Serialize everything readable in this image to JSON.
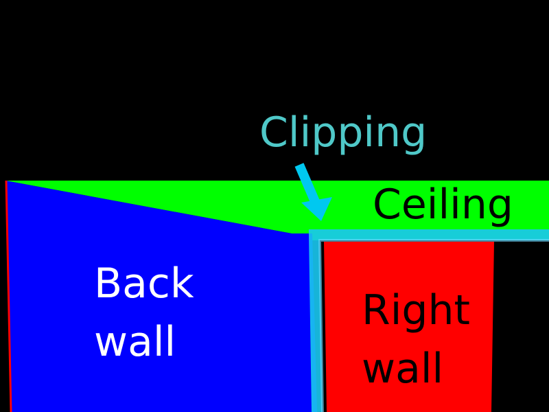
{
  "labels": {
    "clipping": "Clipping",
    "ceiling": "Ceiling",
    "back_wall_line1": "Back",
    "back_wall_line2": "wall",
    "right_wall_line1": "Right",
    "right_wall_line2": "wall"
  },
  "colors": {
    "background": "#000000",
    "back_wall": "#0000ff",
    "ceiling": "#00ff00",
    "right_wall": "#ff0000",
    "clipping_highlight": "#19c8f0",
    "clipping_text": "#4fc8c8",
    "arrow": "#00c8f0",
    "text_light": "#ffffff",
    "text_dark": "#000000"
  }
}
